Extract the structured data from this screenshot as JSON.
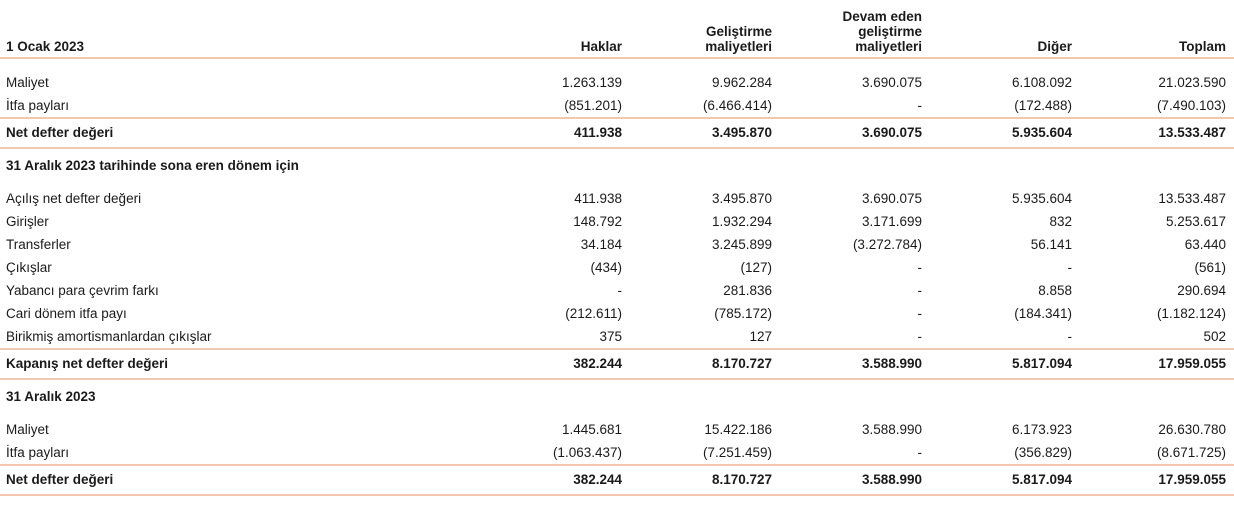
{
  "header": {
    "label": "1 Ocak 2023",
    "columns": [
      "Haklar",
      "Geliştirme\nmaliyetleri",
      "Devam eden\ngeliştirme\nmaliyetleri",
      "Diğer",
      "Toplam"
    ]
  },
  "opening": {
    "rows": [
      {
        "label": "Maliyet",
        "values": [
          "1.263.139",
          "9.962.284",
          "3.690.075",
          "6.108.092",
          "21.023.590"
        ]
      },
      {
        "label": "İtfa payları",
        "values": [
          "(851.201)",
          "(6.466.414)",
          "-",
          "(172.488)",
          "(7.490.103)"
        ]
      }
    ],
    "total": {
      "label": "Net defter değeri",
      "values": [
        "411.938",
        "3.495.870",
        "3.690.075",
        "5.935.604",
        "13.533.487"
      ]
    }
  },
  "period": {
    "title": "31 Aralık 2023 tarihinde sona eren dönem için",
    "rows": [
      {
        "label": "Açılış net defter değeri",
        "values": [
          "411.938",
          "3.495.870",
          "3.690.075",
          "5.935.604",
          "13.533.487"
        ]
      },
      {
        "label": "Girişler",
        "values": [
          "148.792",
          "1.932.294",
          "3.171.699",
          "832",
          "5.253.617"
        ]
      },
      {
        "label": "Transferler",
        "values": [
          "34.184",
          "3.245.899",
          "(3.272.784)",
          "56.141",
          "63.440"
        ]
      },
      {
        "label": "Çıkışlar",
        "values": [
          "(434)",
          "(127)",
          "-",
          "-",
          "(561)"
        ]
      },
      {
        "label": "Yabancı para çevrim farkı",
        "values": [
          "-",
          "281.836",
          "-",
          "8.858",
          "290.694"
        ]
      },
      {
        "label": "Cari dönem itfa payı",
        "values": [
          "(212.611)",
          "(785.172)",
          "-",
          "(184.341)",
          "(1.182.124)"
        ]
      },
      {
        "label": "Birikmiş amortismanlardan çıkışlar",
        "values": [
          "375",
          "127",
          "-",
          "-",
          "502"
        ]
      }
    ],
    "total": {
      "label": "Kapanış net defter değeri",
      "values": [
        "382.244",
        "8.170.727",
        "3.588.990",
        "5.817.094",
        "17.959.055"
      ]
    }
  },
  "closing": {
    "title": "31 Aralık 2023",
    "rows": [
      {
        "label": "Maliyet",
        "values": [
          "1.445.681",
          "15.422.186",
          "3.588.990",
          "6.173.923",
          "26.630.780"
        ]
      },
      {
        "label": "İtfa payları",
        "values": [
          "(1.063.437)",
          "(7.251.459)",
          "-",
          "(356.829)",
          "(8.671.725)"
        ]
      }
    ],
    "total": {
      "label": "Net defter değeri",
      "values": [
        "382.244",
        "8.170.727",
        "3.588.990",
        "5.817.094",
        "17.959.055"
      ]
    }
  }
}
